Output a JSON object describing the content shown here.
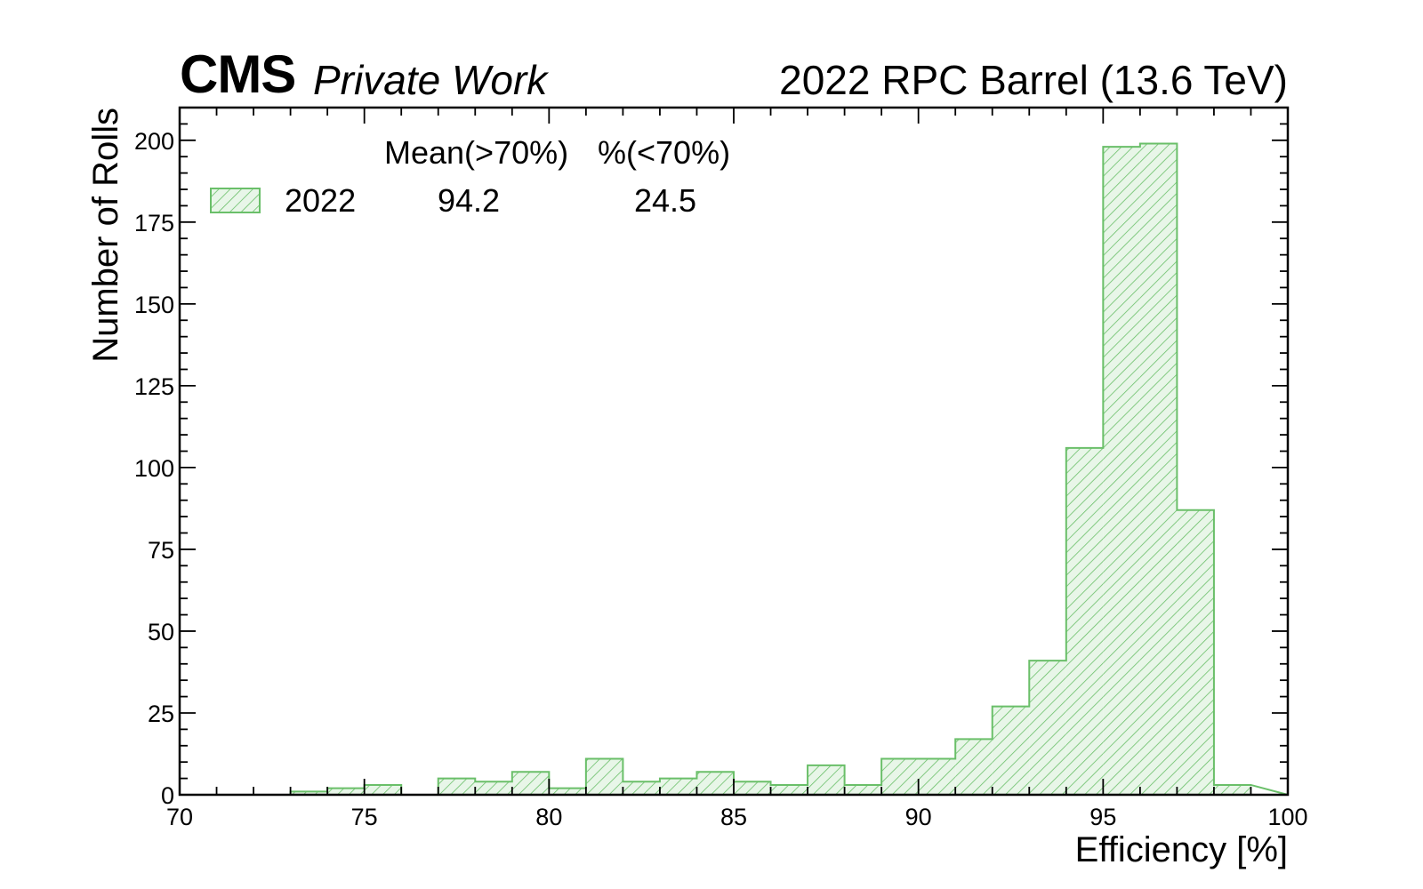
{
  "header": {
    "experiment": "CMS",
    "status": "Private Work",
    "right_label": "2022 RPC Barrel (13.6 TeV)"
  },
  "legend": {
    "col_mean": "Mean(>70%)",
    "col_frac": "%(<70%)",
    "entry_label": "2022",
    "entry_mean": "94.2",
    "entry_frac": "24.5"
  },
  "colors": {
    "hist_line": "#6abf69",
    "hist_fill": "#e8f6e8",
    "hatch": "#6abf69",
    "axis": "#000000"
  },
  "chart_data": {
    "type": "bar",
    "xlabel": "Efficiency [%]",
    "ylabel": "Number of Rolls",
    "xlim": [
      70,
      100
    ],
    "ylim": [
      0,
      210
    ],
    "x_ticks": [
      70,
      75,
      80,
      85,
      90,
      95,
      100
    ],
    "y_ticks": [
      0,
      25,
      50,
      75,
      100,
      125,
      150,
      175,
      200
    ],
    "bin_edges": [
      70,
      71,
      72,
      73,
      74,
      75,
      76,
      77,
      78,
      79,
      80,
      81,
      82,
      83,
      84,
      85,
      86,
      87,
      88,
      89,
      90,
      91,
      92,
      93,
      94,
      95,
      96,
      97,
      98,
      99
    ],
    "values": [
      0,
      0,
      0,
      1,
      2,
      3,
      0,
      5,
      4,
      7,
      2,
      11,
      4,
      5,
      7,
      4,
      3,
      9,
      3,
      11,
      11,
      17,
      27,
      41,
      106,
      198,
      199,
      87,
      3
    ],
    "series": [
      {
        "name": "2022"
      }
    ]
  }
}
